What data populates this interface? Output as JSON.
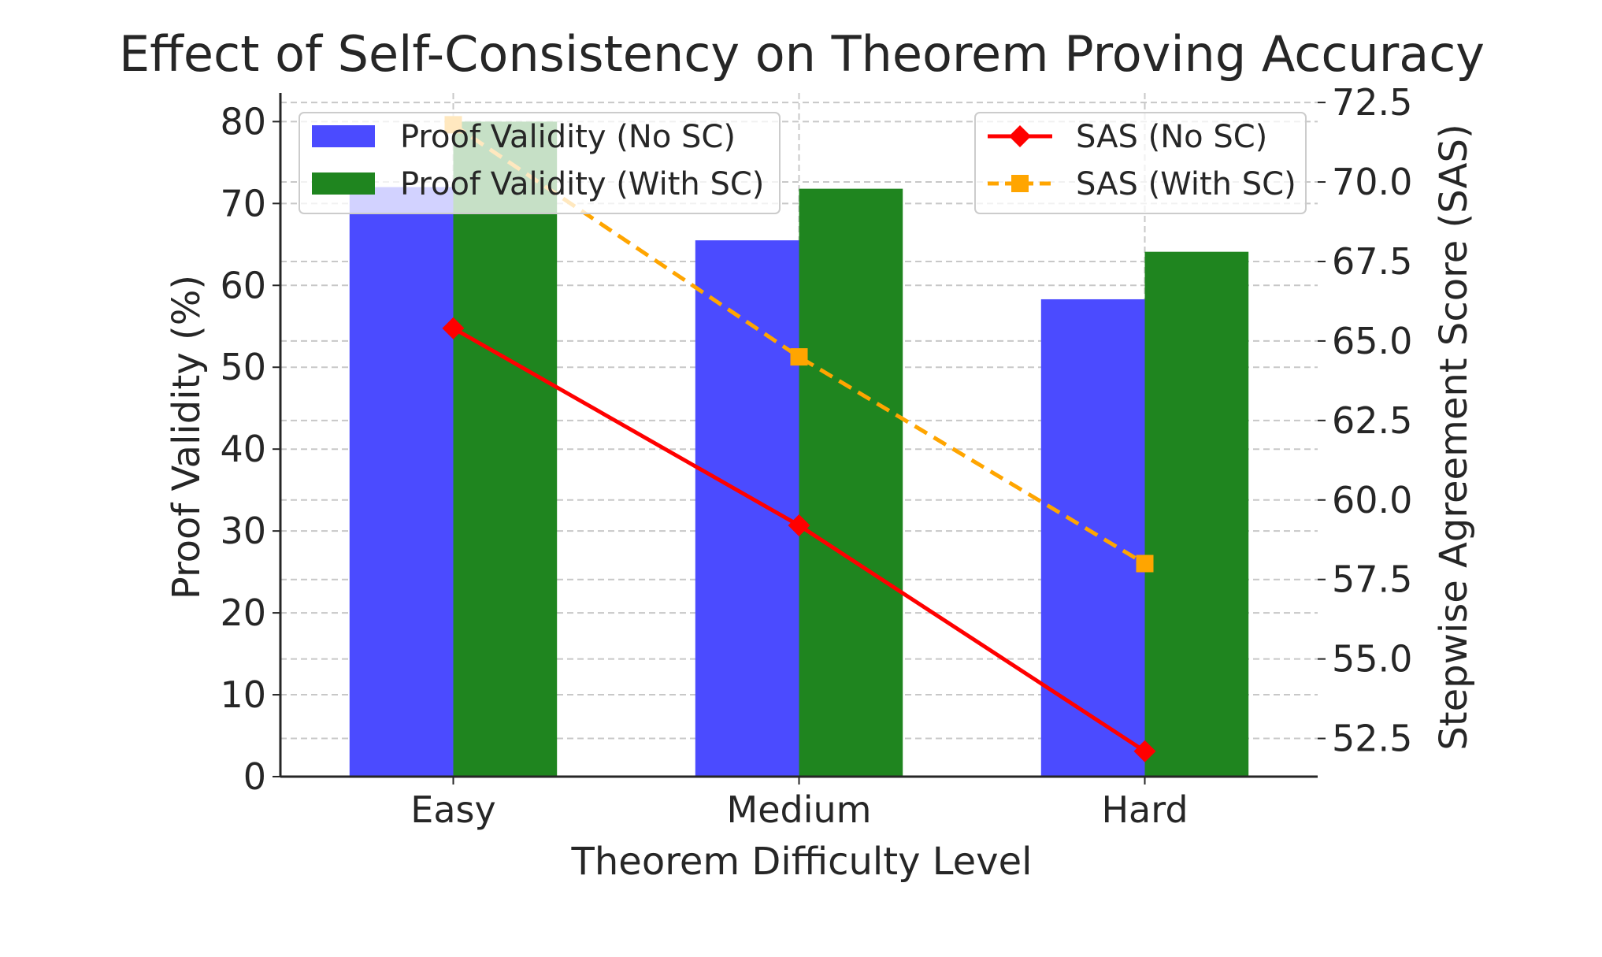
{
  "chart_data": {
    "type": "bar",
    "title": "Effect of Self-Consistency on Theorem Proving Accuracy",
    "xlabel": "Theorem Difficulty Level",
    "ylabel": "Proof Validity (%)",
    "y2label": "Stepwise Agreement Score (SAS)",
    "categories": [
      "Easy",
      "Medium",
      "Hard"
    ],
    "ylim": [
      0,
      83.5
    ],
    "y2lim": [
      51.3,
      72.8
    ],
    "yticks": [
      0,
      10,
      20,
      30,
      40,
      50,
      60,
      70,
      80
    ],
    "y2ticks": [
      "52.5",
      "55.0",
      "57.5",
      "60.0",
      "62.5",
      "65.0",
      "67.5",
      "70.0",
      "72.5"
    ],
    "grid": true,
    "bar_series": [
      {
        "name": "Proof Validity (No SC)",
        "values": [
          72,
          65.5,
          58.3
        ],
        "color": "#4b4bff"
      },
      {
        "name": "Proof Validity (With SC)",
        "values": [
          80,
          71.8,
          64.1
        ],
        "color": "#1f851f"
      }
    ],
    "line_series": [
      {
        "name": "SAS (No SC)",
        "values": [
          65.4,
          59.2,
          52.1
        ],
        "color": "#ff0000",
        "linestyle": "solid",
        "marker": "diamond"
      },
      {
        "name": "SAS (With SC)",
        "values": [
          71.8,
          64.5,
          58.0
        ],
        "color": "#ffa500",
        "linestyle": "dashed",
        "marker": "square"
      }
    ],
    "legend_left_placement": "upper-left",
    "legend_right_placement": "upper-right"
  }
}
